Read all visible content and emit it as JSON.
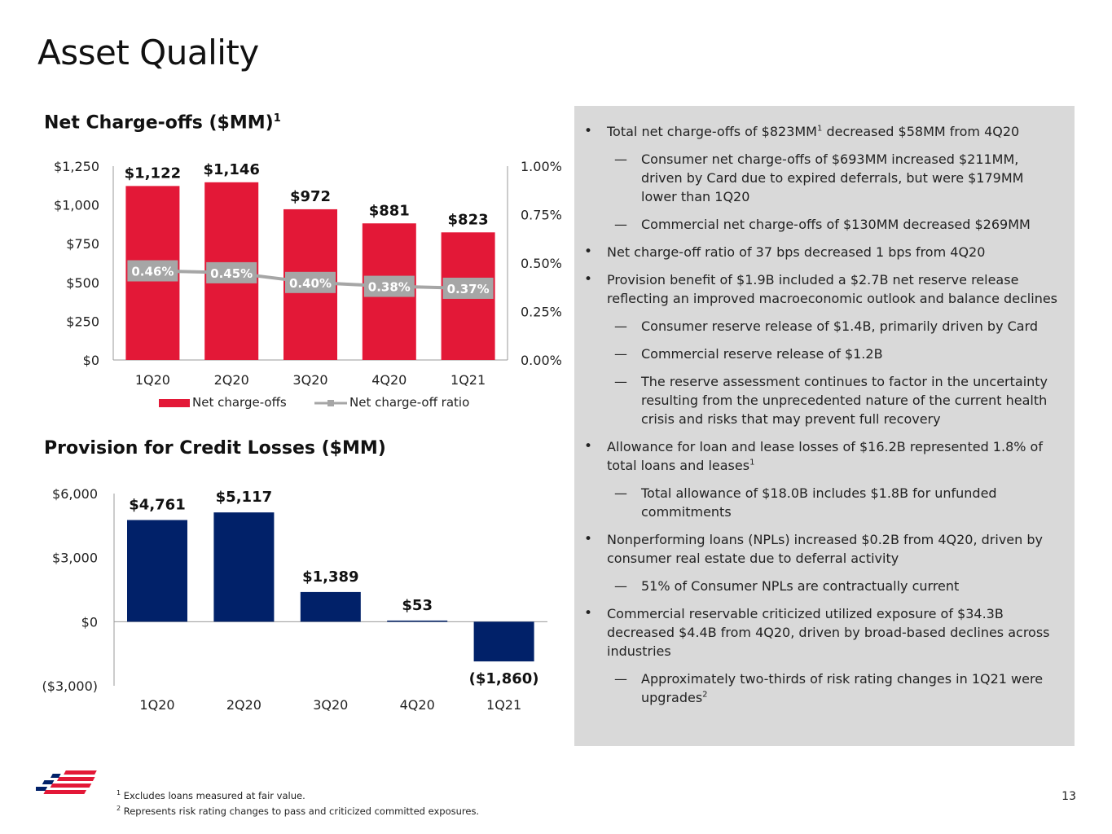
{
  "title": "Asset Quality",
  "chart1_title": "Net Charge-offs ($MM)",
  "chart1_title_sup": "1",
  "chart2_title": "Provision for Credit Losses ($MM)",
  "colors": {
    "red": "#e31837",
    "navy": "#012169",
    "gray_line": "#a6a6a6",
    "panel": "#d9d9d9"
  },
  "chart_data": [
    {
      "type": "bar",
      "title": "Net Charge-offs ($MM)",
      "categories": [
        "1Q20",
        "2Q20",
        "3Q20",
        "4Q20",
        "1Q21"
      ],
      "series": [
        {
          "name": "Net charge-offs",
          "axis": "left",
          "values": [
            1122,
            1146,
            972,
            881,
            823
          ],
          "labels": [
            "$1,122",
            "$1,146",
            "$972",
            "$881",
            "$823"
          ]
        },
        {
          "name": "Net charge-off ratio",
          "type": "line",
          "axis": "right",
          "values": [
            0.46,
            0.45,
            0.4,
            0.38,
            0.37
          ],
          "labels": [
            "0.46%",
            "0.45%",
            "0.40%",
            "0.38%",
            "0.37%"
          ]
        }
      ],
      "ylim": [
        0,
        1250
      ],
      "yticks": [
        0,
        250,
        500,
        750,
        1000,
        1250
      ],
      "ytick_labels": [
        "$0",
        "$250",
        "$500",
        "$750",
        "$1,000",
        "$1,250"
      ],
      "y2lim": [
        0,
        1.0
      ],
      "y2ticks": [
        0,
        0.25,
        0.5,
        0.75,
        1.0
      ],
      "y2tick_labels": [
        "0.00%",
        "0.25%",
        "0.50%",
        "0.75%",
        "1.00%"
      ],
      "legend": "bottom"
    },
    {
      "type": "bar",
      "title": "Provision for Credit Losses ($MM)",
      "categories": [
        "1Q20",
        "2Q20",
        "3Q20",
        "4Q20",
        "1Q21"
      ],
      "values": [
        4761,
        5117,
        1389,
        53,
        -1860
      ],
      "labels": [
        "$4,761",
        "$5,117",
        "$1,389",
        "$53",
        "($1,860)"
      ],
      "ylim": [
        -3000,
        6000
      ],
      "yticks": [
        -3000,
        0,
        3000,
        6000
      ],
      "ytick_labels": [
        "($3,000)",
        "$0",
        "$3,000",
        "$6,000"
      ]
    }
  ],
  "bullets": [
    {
      "level": 1,
      "text": "Total net charge-offs of $823MM",
      "sup": "1",
      "text_after": " decreased $58MM from 4Q20"
    },
    {
      "level": 2,
      "text": "Consumer net charge-offs of $693MM increased $211MM, driven by Card due to expired deferrals, but were $179MM lower than 1Q20"
    },
    {
      "level": 2,
      "text": "Commercial net charge-offs of $130MM decreased $269MM"
    },
    {
      "level": 1,
      "text": "Net charge-off ratio of 37 bps decreased 1 bps from 4Q20"
    },
    {
      "level": 1,
      "text": "Provision benefit of $1.9B included a $2.7B net reserve release reflecting an improved macroeconomic outlook and balance declines"
    },
    {
      "level": 2,
      "text": "Consumer reserve release of $1.4B, primarily driven by Card"
    },
    {
      "level": 2,
      "text": "Commercial reserve release of $1.2B"
    },
    {
      "level": 2,
      "text": "The reserve assessment continues to factor in the uncertainty resulting from the unprecedented nature of the current health crisis and risks that may prevent full recovery"
    },
    {
      "level": 1,
      "text": "Allowance for loan and lease losses of $16.2B represented 1.8% of total loans and leases",
      "sup": "1",
      "text_after": ""
    },
    {
      "level": 2,
      "text": "Total allowance of $18.0B includes $1.8B for unfunded commitments"
    },
    {
      "level": 1,
      "text": "Nonperforming loans (NPLs) increased $0.2B from 4Q20, driven by consumer real estate due to deferral activity"
    },
    {
      "level": 2,
      "text": "51% of Consumer NPLs are contractually current"
    },
    {
      "level": 1,
      "text": "Commercial reservable criticized utilized exposure of $34.3B decreased $4.4B from 4Q20, driven by broad-based declines across industries"
    },
    {
      "level": 2,
      "text": "Approximately two-thirds of risk rating changes in 1Q21 were upgrades",
      "sup": "2",
      "text_after": ""
    }
  ],
  "footnotes": [
    {
      "num": "1",
      "text": " Excludes loans measured at fair value."
    },
    {
      "num": "2",
      "text": " Represents risk rating changes to pass and criticized committed exposures."
    }
  ],
  "page_number": "13"
}
